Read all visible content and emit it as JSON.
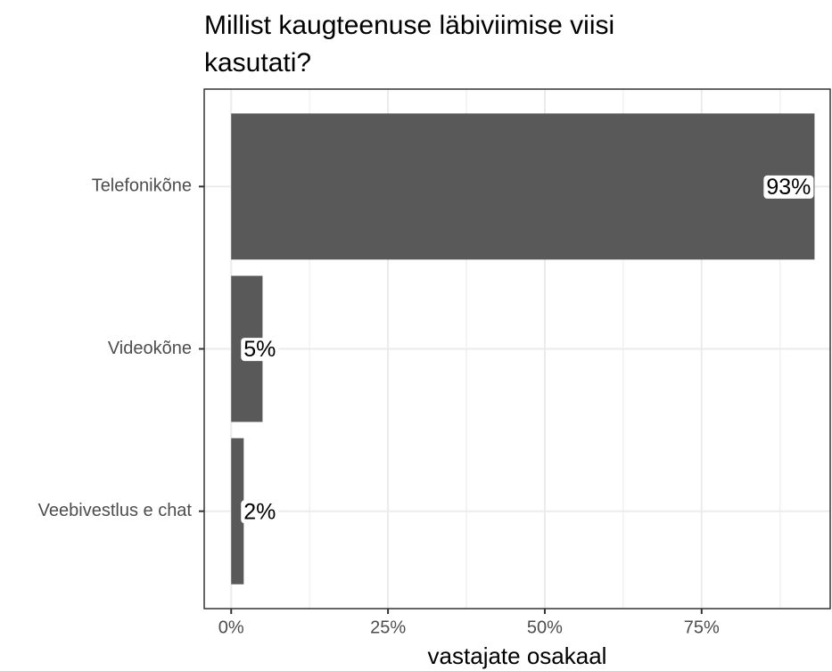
{
  "chart_data": {
    "type": "barh",
    "title": [
      "Millist kaugteenuse läbiviimise viisi",
      "kasutati?"
    ],
    "xlabel": "vastajate osakaal",
    "categories": [
      "Telefonikõne",
      "Videokõne",
      "Veebivestlus e chat"
    ],
    "values": [
      93,
      5,
      2
    ],
    "value_labels": [
      "93%",
      "5%",
      "2%"
    ],
    "color": "#595959",
    "xlim": [
      -4.3,
      95.5
    ],
    "xticks": [
      {
        "value": 0,
        "label": "0%"
      },
      {
        "value": 25,
        "label": "25%"
      },
      {
        "value": 50,
        "label": "50%"
      },
      {
        "value": 75,
        "label": "75%"
      }
    ],
    "minor_xticks": [
      12.5,
      37.5,
      62.5,
      87.5
    ],
    "grid": true
  }
}
